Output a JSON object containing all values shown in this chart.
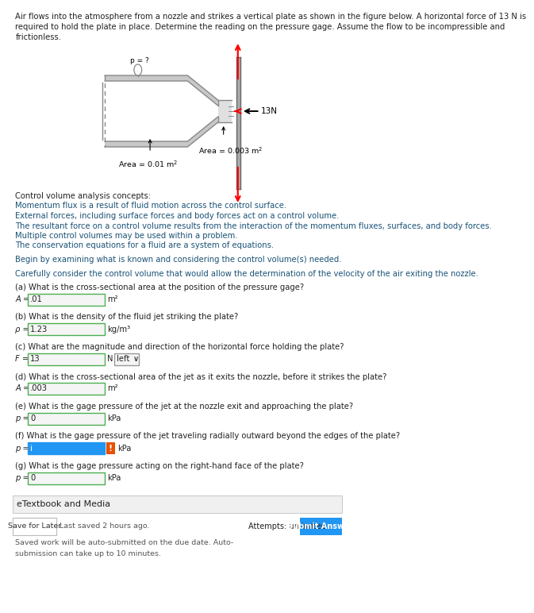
{
  "title_text": "Air flows into the atmosphere from a nozzle and strikes a vertical plate as shown in the figure below. A horizontal force of 13 N is required to hold the plate in place. Determine the reading on the pressure gage. Assume the flow to be incompressible and frictionless.",
  "concepts_title": "Control volume analysis concepts:",
  "concepts_lines": [
    "Momentum flux is a result of fluid motion across the control surface.",
    "External forces, including surface forces and body forces act on a control volume.",
    "The resultant force on a control volume results from the interaction of the momentum fluxes, surfaces, and body forces.",
    "Multiple control volumes may be used within a problem.",
    "The conservation equations for a fluid are a system of equations."
  ],
  "bold_line1": "Begin by examining what is known and considering the control volume(s) needed.",
  "bold_line2": "Carefully consider the control volume that would allow the determination of the velocity of the air exiting the nozzle.",
  "qa": [
    {
      "label": "(a) What is the cross-sectional area at the position of the pressure gage?",
      "var": "A",
      "value": ".01",
      "suffix": "m²",
      "box_color": "#f5f5f5",
      "border_color": "#4caf50",
      "text_color": "#222222",
      "bold_label": false
    },
    {
      "label": "(b) What is the density of the fluid jet striking the plate?",
      "var": "ρ",
      "value": "1.23",
      "suffix": "kg/m³",
      "box_color": "#f5f5f5",
      "border_color": "#4caf50",
      "text_color": "#222222",
      "bold_label": false
    },
    {
      "label": "(c) What are the magnitude and direction of the horizontal force holding the plate?",
      "var": "F",
      "value": "13",
      "suffix": "N",
      "box_color": "#f5f5f5",
      "border_color": "#4caf50",
      "text_color": "#222222",
      "bold_label": false,
      "dropdown": true,
      "dropdown_value": "left"
    },
    {
      "label": "(d) What is the cross-sectional area of the jet as it exits the nozzle, before it strikes the plate?",
      "var": "A",
      "value": ".003",
      "suffix": "m²",
      "box_color": "#f5f5f5",
      "border_color": "#4caf50",
      "text_color": "#222222",
      "bold_label": false
    },
    {
      "label": "(e) What is the gage pressure of the jet at the nozzle exit and approaching the plate?",
      "var": "p",
      "value": "0",
      "suffix": "kPa",
      "box_color": "#f5f5f5",
      "border_color": "#4caf50",
      "text_color": "#222222",
      "bold_label": false
    },
    {
      "label": "(f) What is the gage pressure of the jet traveling radially outward beyond the edges of the plate?",
      "var": "p",
      "value": "i",
      "suffix": "kPa",
      "box_color": "#2196f3",
      "border_color": "#2196f3",
      "text_color": "#ffffff",
      "bold_label": false,
      "extra_icon": true
    },
    {
      "label": "(g) What is the gage pressure acting on the right-hand face of the plate?",
      "var": "p",
      "value": "0",
      "suffix": "kPa",
      "box_color": "#f5f5f5",
      "border_color": "#4caf50",
      "text_color": "#222222",
      "bold_label": false
    }
  ],
  "etextbook_label": "eTextbook and Media",
  "save_later": "Save for Later",
  "last_saved": "Last saved 2 hours ago.",
  "attempts": "Attempts: unlimited",
  "submit_btn": "Submit Answer",
  "bg_color": "#ffffff",
  "text_color": "#222222",
  "link_color": "#1a5276",
  "nozzle_fill": "#c8c8c8",
  "nozzle_edge": "#888888",
  "plate_fill": "#aaaaaa",
  "plate_edge": "#666666"
}
